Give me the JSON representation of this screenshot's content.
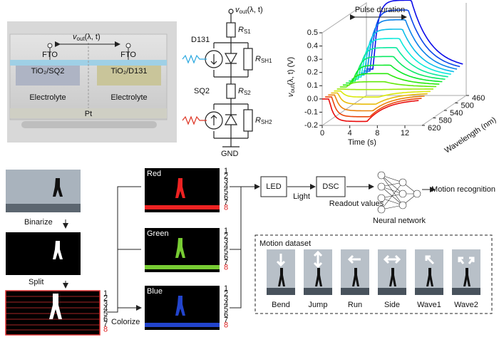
{
  "vout": {
    "v": "v",
    "sub": "out",
    "arg": "(λ, t)"
  },
  "device": {
    "fto_left": "FTO",
    "fto_right": "FTO",
    "dye_left": "TiO₂/SQ2",
    "dye_right": "TiO₂/D131",
    "electrolyte_left": "Electrolyte",
    "electrolyte_right": "Electrolyte",
    "counter": "Pt"
  },
  "circuit": {
    "dye_top": "D131",
    "dye_bottom": "SQ2",
    "r": "R",
    "rs1": "S1",
    "rsh1": "SH1",
    "rs2": "S2",
    "rsh2": "SH2",
    "ground": "GND"
  },
  "plot": {
    "annotation": "Pulse duration",
    "y_unit": "(V)",
    "yticks": [
      0.5,
      0.4,
      0.3,
      0.2,
      0.1,
      {
        "value": 0,
        "label": "0.0"
      },
      -0.1,
      -0.2
    ],
    "xlabel": "Time (s)",
    "xticks": [
      0,
      4,
      8,
      12
    ],
    "zlabel": "Wavelength (nm)",
    "zticks": [
      460,
      500,
      540,
      580,
      620
    ]
  },
  "pipeline": {
    "binarize": "Binarize",
    "split": "Split",
    "colorize": "Colorize",
    "red": "Red",
    "green": "Green",
    "blue": "Blue",
    "rows": [
      1,
      2,
      3,
      4,
      5,
      6,
      7,
      8
    ],
    "led": "LED",
    "light": "Light",
    "dsc": "DSC",
    "readout": "Readout values",
    "network": "Neural network",
    "output": "Motion recognition"
  },
  "dataset": {
    "title": "Motion dataset",
    "motions": [
      "Bend",
      "Jump",
      "Run",
      "Side",
      "Wave1",
      "Wave2"
    ]
  }
}
